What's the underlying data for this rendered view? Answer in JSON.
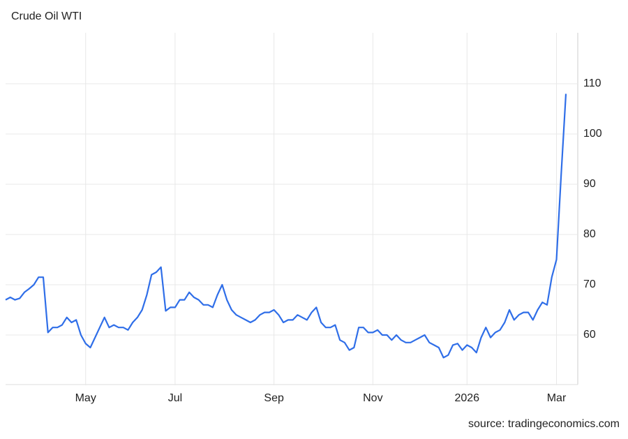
{
  "chart_data": {
    "type": "line",
    "title": "Crude Oil WTI",
    "source": "source: tradingeconomics.com",
    "categories": [
      null,
      null,
      null,
      null,
      null,
      null,
      null,
      null,
      null,
      null,
      null,
      null,
      null,
      null,
      null,
      null,
      null,
      "May",
      null,
      null,
      null,
      null,
      null,
      null,
      null,
      null,
      null,
      null,
      null,
      null,
      null,
      null,
      null,
      null,
      null,
      null,
      "Jul",
      null,
      null,
      null,
      null,
      null,
      null,
      null,
      null,
      null,
      null,
      null,
      null,
      null,
      null,
      null,
      null,
      null,
      null,
      null,
      null,
      "Sep",
      null,
      null,
      null,
      null,
      null,
      null,
      null,
      null,
      null,
      null,
      null,
      null,
      null,
      null,
      null,
      null,
      null,
      null,
      null,
      null,
      "Nov",
      null,
      null,
      null,
      null,
      null,
      null,
      null,
      null,
      null,
      null,
      null,
      null,
      null,
      null,
      null,
      null,
      null,
      null,
      null,
      "2026",
      null,
      null,
      null,
      null,
      null,
      null,
      null,
      null,
      null,
      null,
      null,
      null,
      null,
      null,
      null,
      null,
      null,
      null,
      "Mar",
      null,
      null
    ],
    "values": [
      67,
      67.5,
      67,
      67.3,
      68.5,
      69.2,
      70,
      71.5,
      71.5,
      60.5,
      61.5,
      61.5,
      62,
      63.5,
      62.5,
      63,
      60,
      58.3,
      57.5,
      59.5,
      61.5,
      63.5,
      61.5,
      62,
      61.5,
      61.5,
      61,
      62.5,
      63.5,
      65,
      68,
      72,
      72.5,
      73.5,
      64.8,
      65.5,
      65.5,
      67,
      67,
      68.5,
      67.5,
      67,
      66,
      66,
      65.5,
      68,
      70,
      67,
      65,
      64,
      63.5,
      63,
      62.5,
      63,
      64,
      64.5,
      64.5,
      65,
      64,
      62.5,
      63,
      63,
      64,
      63.5,
      63,
      64.5,
      65.5,
      62.5,
      61.5,
      61.5,
      62,
      59,
      58.5,
      57,
      57.5,
      61.5,
      61.5,
      60.5,
      60.5,
      61,
      60,
      60,
      59,
      60,
      59,
      58.5,
      58.5,
      59,
      59.5,
      60,
      58.5,
      58,
      57.5,
      55.5,
      56,
      58,
      58.3,
      57,
      58,
      57.5,
      56.5,
      59.5,
      61.5,
      59.5,
      60.5,
      61,
      62.5,
      65,
      63,
      64,
      64.5,
      64.5,
      63,
      65,
      66.5,
      66,
      71.5,
      75,
      92,
      108
    ],
    "color": "#2f6ee8",
    "ylim": [
      50,
      120
    ],
    "yticks": [
      60,
      70,
      80,
      90,
      100,
      110
    ],
    "grid": true
  }
}
